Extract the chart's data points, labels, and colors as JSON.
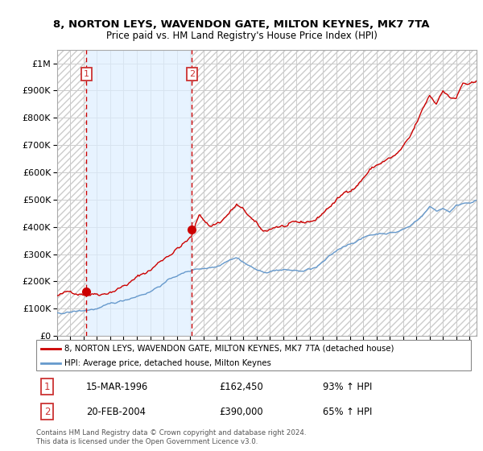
{
  "title": "8, NORTON LEYS, WAVENDON GATE, MILTON KEYNES, MK7 7TA",
  "subtitle": "Price paid vs. HM Land Registry's House Price Index (HPI)",
  "legend_line1": "8, NORTON LEYS, WAVENDON GATE, MILTON KEYNES, MK7 7TA (detached house)",
  "legend_line2": "HPI: Average price, detached house, Milton Keynes",
  "footnote": "Contains HM Land Registry data © Crown copyright and database right 2024.\nThis data is licensed under the Open Government Licence v3.0.",
  "sale1_date": "15-MAR-1996",
  "sale1_price": "£162,450",
  "sale1_hpi": "93% ↑ HPI",
  "sale2_date": "20-FEB-2004",
  "sale2_price": "£390,000",
  "sale2_hpi": "65% ↑ HPI",
  "ylim": [
    0,
    1050000
  ],
  "yticks": [
    0,
    100000,
    200000,
    300000,
    400000,
    500000,
    600000,
    700000,
    800000,
    900000,
    1000000
  ],
  "sale1_x": 1996.21,
  "sale1_y": 162450,
  "sale2_x": 2004.13,
  "sale2_y": 390000,
  "xmin": 1994.0,
  "xmax": 2025.5,
  "red_color": "#cc0000",
  "blue_color": "#6699cc",
  "vline_color": "#cc0000",
  "box_color": "#cc3333",
  "hatch_color": "#cccccc",
  "shade_color": "#ddeeff",
  "grid_color": "#cccccc"
}
